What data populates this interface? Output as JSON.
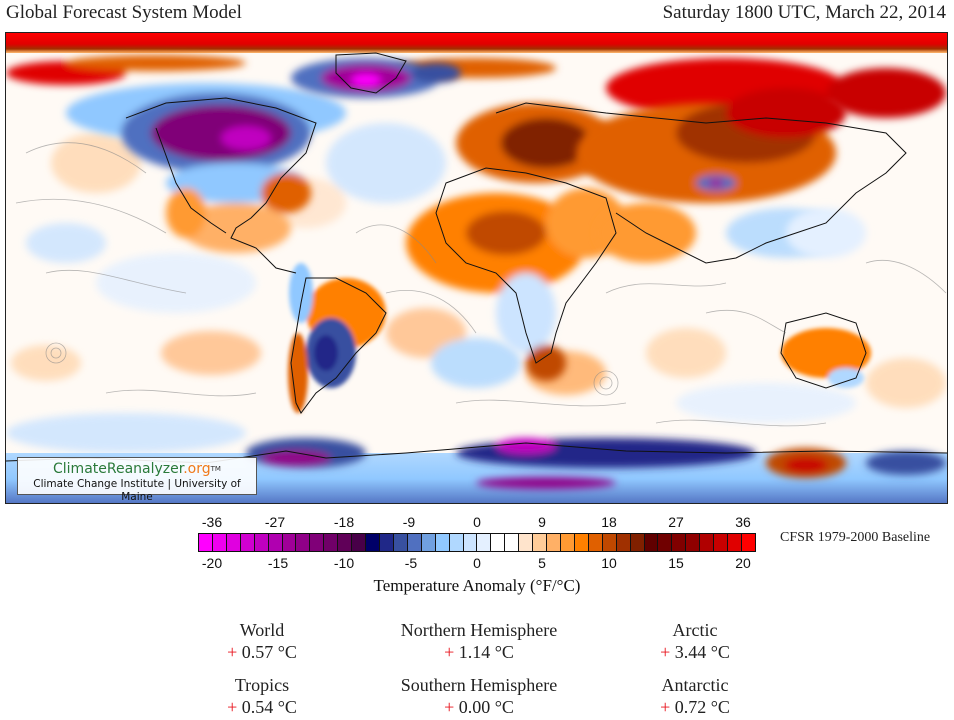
{
  "header": {
    "title": "Global Forecast System Model",
    "datetime": "Saturday 1800 UTC, March 22, 2014"
  },
  "map": {
    "description": "2m temperature anomaly world map (equirectangular) with streamlines",
    "logo": {
      "brand_green": "ClimateReanalyzer",
      "brand_orange": ".org",
      "trademark": "TM",
      "subtitle": "Climate Change Institute | University of Maine",
      "green_color": "#2a7a3a",
      "orange_color": "#f07a1a"
    }
  },
  "legend": {
    "fahrenheit_ticks": [
      "-36",
      "-27",
      "-18",
      "-9",
      "0",
      "9",
      "18",
      "27",
      "36"
    ],
    "celsius_ticks": [
      "-20",
      "-15",
      "-10",
      "-5",
      "0",
      "5",
      "10",
      "15",
      "20"
    ],
    "axis_label": "Temperature Anomaly (°F/°C)",
    "baseline": "CFSR 1979-2000 Baseline",
    "swatches": [
      "#ff00ff",
      "#f000f0",
      "#e000e0",
      "#d000d0",
      "#c000c0",
      "#b000b0",
      "#a00098",
      "#900088",
      "#800078",
      "#700068",
      "#600058",
      "#480048",
      "#000068",
      "#202888",
      "#3850a0",
      "#5070c0",
      "#70a0e0",
      "#90c8ff",
      "#b0d8ff",
      "#cce4ff",
      "#e4f0ff",
      "#ffffff",
      "#ffffff",
      "#ffe4cc",
      "#ffcc99",
      "#ffb066",
      "#ff9a33",
      "#ff8000",
      "#e06000",
      "#c04800",
      "#a03000",
      "#802000",
      "#600000",
      "#700000",
      "#800000",
      "#900000",
      "#b00000",
      "#c80000",
      "#e00000",
      "#ff0000"
    ]
  },
  "stats": [
    {
      "region": "World",
      "sign": "+",
      "value": "0.57 °C"
    },
    {
      "region": "Northern Hemisphere",
      "sign": "+",
      "value": "1.14 °C"
    },
    {
      "region": "Arctic",
      "sign": "+",
      "value": "3.44 °C"
    },
    {
      "region": "Tropics",
      "sign": "+",
      "value": "0.54 °C"
    },
    {
      "region": "Southern Hemisphere",
      "sign": "+",
      "value": "0.00 °C"
    },
    {
      "region": "Antarctic",
      "sign": "+",
      "value": "0.72 °C"
    }
  ]
}
